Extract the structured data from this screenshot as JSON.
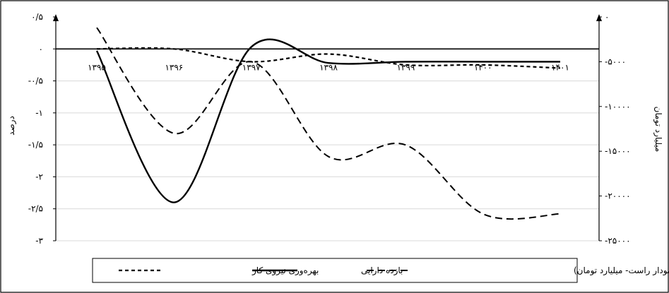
{
  "chart_data": {
    "type": "line",
    "categories": [
      "۱۳۹۵",
      "۱۳۹۶",
      "۱۳۹۷",
      "۱۳۹۸",
      "۱۳۹۹",
      "۱۴۰۰",
      "۱۴۰۱"
    ],
    "left_axis": {
      "label": "درصد",
      "ticks": [
        "۰/۵",
        "۰",
        "-۰/۵",
        "-۱",
        "-۱/۵",
        "-۲",
        "-۲/۵",
        "-۳"
      ],
      "tick_values": [
        0.5,
        0,
        -0.5,
        -1,
        -1.5,
        -2,
        -2.5,
        -3
      ],
      "ylim": [
        -3,
        0.5
      ]
    },
    "right_axis": {
      "label": "میلیارد تومان",
      "ticks": [
        "۰",
        "-۵۰۰۰",
        "-۱۰۰۰۰",
        "-۱۵۰۰۰",
        "-۲۰۰۰۰",
        "-۲۵۰۰۰"
      ],
      "tick_values": [
        0,
        -5000,
        -10000,
        -15000,
        -20000,
        -25000
      ],
      "ylim": [
        -25000,
        0
      ]
    },
    "series": [
      {
        "name": "بهره‌وری نیروی کار",
        "axis": "left",
        "style": "short-dash",
        "values": [
          0.0,
          0.0,
          -0.2,
          -0.08,
          -0.25,
          -0.25,
          -0.3
        ]
      },
      {
        "name": "بازده دارایی",
        "axis": "left",
        "style": "solid",
        "values": [
          -0.03,
          -2.4,
          0.03,
          -0.22,
          -0.2,
          -0.2,
          -0.2
        ]
      },
      {
        "name": "سود خالص (نمودار راست- میلیارد تومان)",
        "axis": "right",
        "style": "long-dash",
        "values": [
          -1200,
          -13000,
          -5000,
          -15600,
          -14300,
          -22000,
          -22000
        ]
      }
    ],
    "grid": true,
    "legend_position": "bottom"
  }
}
